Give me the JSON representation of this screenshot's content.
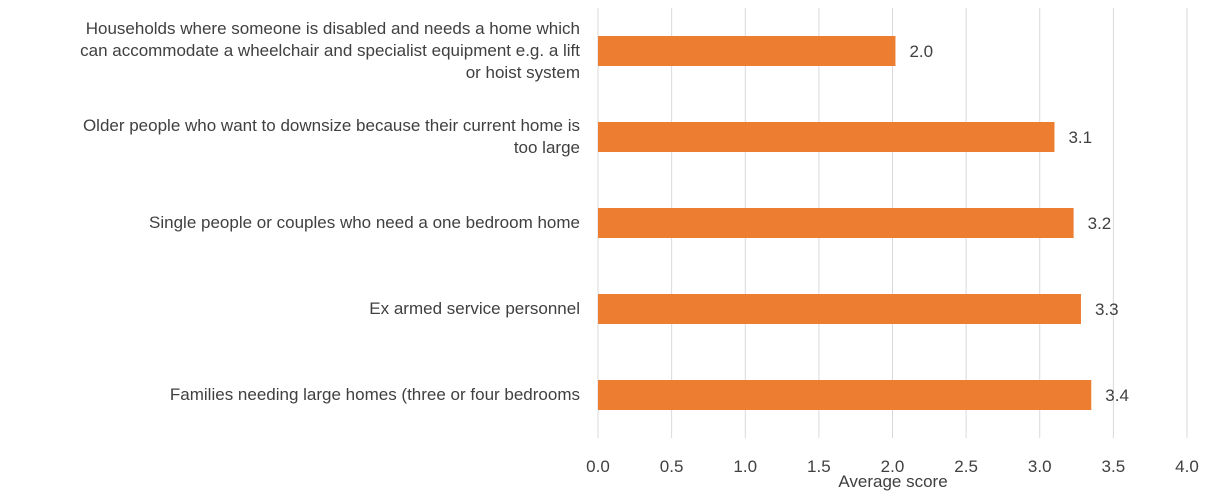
{
  "chart_data": {
    "type": "bar",
    "orientation": "horizontal",
    "categories": [
      "Households where someone is disabled and needs a home which can accommodate a wheelchair and specialist equipment e.g. a lift or hoist system",
      "Older people who want to downsize because their current home is too large",
      "Single people or couples who need a one bedroom home",
      "Ex armed service personnel",
      "Families needing large homes (three or four bedrooms"
    ],
    "category_lines": [
      [
        "Households where someone is disabled and needs a home which",
        "can accommodate a wheelchair and specialist equipment e.g. a lift",
        "or hoist system"
      ],
      [
        "Older people who want to downsize because their current home is",
        "too large"
      ],
      [
        "Single people or couples who need a one bedroom home"
      ],
      [
        "Ex armed service personnel"
      ],
      [
        "Families needing large homes (three or four bedrooms"
      ]
    ],
    "values": [
      2.02,
      3.1,
      3.23,
      3.28,
      3.35
    ],
    "data_labels": [
      "2.0",
      "3.1",
      "3.2",
      "3.3",
      "3.4"
    ],
    "xlim": [
      0,
      4.0
    ],
    "ticks": [
      "0.0",
      "0.5",
      "1.0",
      "1.5",
      "2.0",
      "2.5",
      "3.0",
      "3.5",
      "4.0"
    ],
    "xlabel": "Average score",
    "grid": "vertical",
    "bar_color": "#ED7D31",
    "grid_color": "#D9D9D9"
  }
}
